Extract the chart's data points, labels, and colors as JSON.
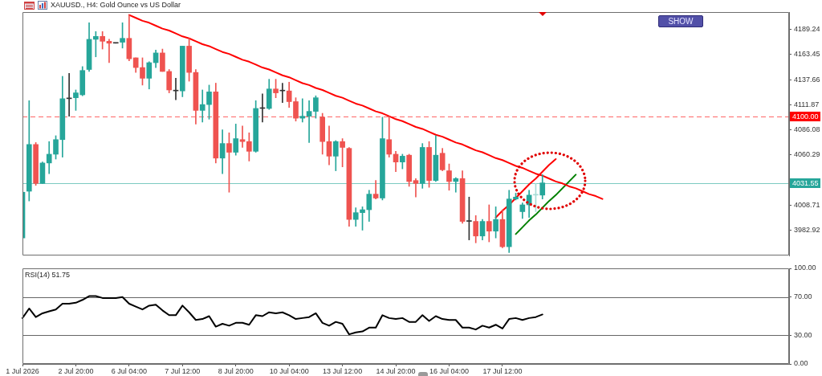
{
  "chart_data": [
    {
      "type": "candlestick",
      "title": "XAUUSD., H4: Gold Ounce vs US Dollar",
      "categories": [
        null,
        null,
        null,
        null,
        null,
        null,
        null,
        null,
        null,
        null,
        null,
        null,
        null,
        null,
        null,
        null,
        null,
        null,
        null,
        null,
        null,
        null,
        null,
        null,
        null,
        null,
        null,
        null,
        null,
        null,
        null,
        null,
        null,
        null,
        null,
        null,
        null,
        null,
        null,
        null,
        null,
        null,
        null,
        null,
        null,
        null,
        null,
        null,
        null,
        null,
        null,
        null,
        null,
        null,
        null,
        null,
        null,
        null,
        null,
        null,
        null,
        null,
        null,
        null,
        null,
        null,
        null,
        null,
        null,
        null,
        null,
        null,
        null,
        null,
        null,
        null,
        null,
        null,
        null,
        null,
        null,
        null,
        null,
        null,
        null,
        null,
        null,
        null,
        null,
        null,
        null,
        null,
        null,
        null,
        null,
        null,
        null,
        null,
        null,
        null,
        null,
        null,
        null,
        null,
        null,
        null,
        null,
        null,
        null,
        null,
        null,
        null,
        null,
        null,
        null,
        null
      ],
      "ohlc": [
        [
          3975,
          4022,
          3975,
          4022
        ],
        [
          4023,
          4116,
          4013,
          4071
        ],
        [
          4071,
          4073,
          4029,
          4031
        ],
        [
          4031,
          4053,
          4031,
          4052
        ],
        [
          4052,
          4074,
          4041,
          4061
        ],
        [
          4061,
          4080,
          4056,
          4076
        ],
        [
          4076,
          4141,
          4058,
          4118
        ],
        [
          4118,
          4144,
          4100,
          4118
        ],
        [
          4119,
          4127,
          4106,
          4124
        ],
        [
          4122,
          4151,
          4121,
          4147
        ],
        [
          4148,
          4196,
          4146,
          4179
        ],
        [
          4179,
          4187,
          4161,
          4182
        ],
        [
          4182,
          4187,
          4169,
          4177
        ],
        [
          4177,
          4179,
          4155,
          4175
        ],
        [
          4175,
          4175,
          4175,
          4175
        ],
        [
          4176,
          4196,
          4170,
          4180
        ],
        [
          4180,
          4204,
          4157,
          4159
        ],
        [
          4160,
          4160,
          4145,
          4150
        ],
        [
          4150,
          4160,
          4132,
          4139
        ],
        [
          4139,
          4156,
          4128,
          4155
        ],
        [
          4155,
          4168,
          4150,
          4165
        ],
        [
          4165,
          4169,
          4146,
          4146
        ],
        [
          4146,
          4148,
          4124,
          4127
        ],
        [
          4126,
          4139,
          4117,
          4126
        ],
        [
          4126,
          4172,
          4120,
          4172
        ],
        [
          4172,
          4180,
          4136,
          4145
        ],
        [
          4145,
          4148,
          4092,
          4106
        ],
        [
          4106,
          4127,
          4094,
          4112
        ],
        [
          4112,
          4132,
          4097,
          4125
        ],
        [
          4125,
          4134,
          4052,
          4057
        ],
        [
          4057,
          4086,
          4041,
          4072
        ],
        [
          4072,
          4083,
          4022,
          4063
        ],
        [
          4063,
          4092,
          4060,
          4077
        ],
        [
          4076,
          4090,
          4068,
          4074
        ],
        [
          4074,
          4083,
          4054,
          4064
        ],
        [
          4064,
          4116,
          4063,
          4108
        ],
        [
          4108,
          4123,
          4094,
          4108
        ],
        [
          4108,
          4138,
          4107,
          4128
        ],
        [
          4128,
          4138,
          4119,
          4124
        ],
        [
          4126,
          4134,
          4114,
          4126
        ],
        [
          4126,
          4135,
          4109,
          4115
        ],
        [
          4115,
          4119,
          4095,
          4098
        ],
        [
          4098,
          4118,
          4094,
          4100
        ],
        [
          4100,
          4116,
          4073,
          4105
        ],
        [
          4105,
          4121,
          4098,
          4119
        ],
        [
          4099,
          4103,
          4061,
          4074
        ],
        [
          4074,
          4090,
          4050,
          4059
        ],
        [
          4059,
          4075,
          4044,
          4074
        ],
        [
          4074,
          4077,
          4048,
          4068
        ],
        [
          4067,
          4068,
          3987,
          3994
        ],
        [
          3994,
          4006,
          3987,
          4001
        ],
        [
          4001,
          4007,
          3983,
          4004
        ],
        [
          4004,
          4024,
          3992,
          4020
        ],
        [
          4020,
          4034,
          4015,
          4016
        ],
        [
          4016,
          4099,
          4014,
          4077
        ],
        [
          4076,
          4100,
          4058,
          4061
        ],
        [
          4061,
          4064,
          4043,
          4053
        ],
        [
          4053,
          4061,
          4046,
          4059
        ],
        [
          4060,
          4061,
          4028,
          4033
        ],
        [
          4034,
          4036,
          4017,
          4031
        ],
        [
          4031,
          4072,
          4026,
          4068
        ],
        [
          4068,
          4074,
          4027,
          4034
        ],
        [
          4034,
          4080,
          4033,
          4060
        ],
        [
          4062,
          4067,
          4044,
          4045
        ],
        [
          4044,
          4051,
          4024,
          4033
        ],
        [
          4033,
          4037,
          4022,
          4036
        ],
        [
          4036,
          4044,
          3990,
          3992
        ],
        [
          3992,
          4017,
          3973,
          3992
        ],
        [
          3992,
          3998,
          3970,
          3977
        ],
        [
          3977,
          3994,
          3973,
          3992
        ],
        [
          3992,
          4009,
          3971,
          3982
        ],
        [
          3982,
          4007,
          3975,
          3994
        ],
        [
          3994,
          4004,
          3965,
          3966
        ],
        [
          3966,
          4024,
          3960,
          4015
        ],
        [
          4015,
          4021,
          4014,
          4017
        ],
        [
          4002,
          4011,
          3995,
          4009
        ],
        [
          4009,
          4024,
          3996,
          4019
        ],
        [
          4019,
          4031,
          4002,
          4019
        ],
        [
          4019,
          4040,
          4015,
          4031.55
        ],
        null,
        null,
        null,
        null,
        null,
        null,
        null,
        null,
        null,
        null,
        null,
        null,
        null,
        null,
        null,
        null,
        null,
        null,
        null,
        null,
        null,
        null,
        null,
        null,
        null,
        null,
        null,
        null,
        null,
        null,
        null,
        null,
        null,
        null,
        null,
        null,
        null
      ],
      "colors": [
        "#26a69a",
        "#26a69a",
        "#ef5350",
        "#26a69a",
        "#26a69a",
        "#26a69a",
        "#26a69a",
        "#333333",
        "#26a69a",
        "#26a69a",
        "#26a69a",
        "#26a69a",
        "#ef5350",
        "#ef5350",
        "#333333",
        "#26a69a",
        "#ef5350",
        "#ef5350",
        "#ef5350",
        "#26a69a",
        "#26a69a",
        "#ef5350",
        "#ef5350",
        "#333333",
        "#26a69a",
        "#ef5350",
        "#ef5350",
        "#26a69a",
        "#26a69a",
        "#ef5350",
        "#26a69a",
        "#ef5350",
        "#26a69a",
        "#ef5350",
        "#ef5350",
        "#26a69a",
        "#333333",
        "#26a69a",
        "#ef5350",
        "#333333",
        "#ef5350",
        "#ef5350",
        "#26a69a",
        "#26a69a",
        "#26a69a",
        "#ef5350",
        "#ef5350",
        "#26a69a",
        "#ef5350",
        "#ef5350",
        "#26a69a",
        "#26a69a",
        "#26a69a",
        "#ef5350",
        "#26a69a",
        "#ef5350",
        "#ef5350",
        "#26a69a",
        "#ef5350",
        "#ef5350",
        "#26a69a",
        "#ef5350",
        "#26a69a",
        "#ef5350",
        "#ef5350",
        "#26a69a",
        "#ef5350",
        "#333333",
        "#ef5350",
        "#26a69a",
        "#ef5350",
        "#26a69a",
        "#ef5350",
        "#26a69a",
        "#26a69a",
        "#26a69a",
        "#26a69a",
        "#a6dcd6",
        "#26a69a",
        null,
        null,
        null,
        null,
        null,
        null,
        null,
        null,
        null,
        null,
        null,
        null,
        null,
        null,
        null,
        null,
        null,
        null,
        null,
        null,
        null,
        null,
        null,
        null,
        null,
        null,
        null,
        null,
        null,
        null,
        null,
        null,
        null,
        null,
        null,
        null,
        null
      ],
      "series": [
        {
          "type": "line",
          "color": "#ff0000",
          "values": [
            null,
            null,
            null,
            null,
            null,
            null,
            null,
            null,
            null,
            null,
            null,
            null,
            null,
            null,
            null,
            null,
            4204,
            4201,
            4198,
            4196,
            4193,
            4190,
            4188,
            4185,
            4182,
            4180,
            4177,
            4174,
            4172,
            4169,
            4166,
            4164,
            4161,
            4158,
            4156,
            4153,
            4150,
            4148,
            4145,
            4142,
            4140,
            4137,
            4134,
            4132,
            4129,
            4127,
            4124,
            4121,
            4119,
            4116,
            4113,
            4111,
            4108,
            4105,
            4103,
            4100,
            4097,
            4095,
            4092,
            4089,
            4087,
            4084,
            4081,
            4079,
            4076,
            4073,
            4071,
            4068,
            4065,
            4063,
            4060,
            4057,
            4055,
            4052,
            4049,
            4047,
            4044,
            4041,
            4039,
            4036,
            4033,
            4031,
            4028,
            4026,
            4023,
            4020,
            4018,
            4015,
            null,
            null,
            null,
            null,
            null,
            null,
            null,
            null,
            null,
            null,
            null,
            null,
            null,
            null,
            null,
            null,
            null,
            null,
            null,
            null,
            null,
            null,
            null,
            null,
            null,
            null,
            null,
            null
          ]
        },
        {
          "type": "line",
          "color": "#ff0000",
          "values": [
            null,
            null,
            null,
            null,
            null,
            null,
            null,
            null,
            null,
            null,
            null,
            null,
            null,
            null,
            null,
            null,
            null,
            null,
            null,
            null,
            null,
            null,
            null,
            null,
            null,
            null,
            null,
            null,
            null,
            null,
            null,
            null,
            null,
            null,
            null,
            null,
            null,
            null,
            null,
            null,
            null,
            null,
            null,
            null,
            null,
            null,
            null,
            null,
            null,
            null,
            null,
            null,
            null,
            null,
            null,
            null,
            null,
            null,
            null,
            null,
            null,
            null,
            null,
            null,
            null,
            null,
            null,
            null,
            null,
            null,
            null,
            3996,
            4003,
            4009,
            4016,
            4023,
            4030,
            4036,
            4043,
            4050,
            4056,
            null,
            null,
            null,
            null,
            null,
            null,
            null,
            null,
            null,
            null,
            null,
            null,
            null,
            null,
            null,
            null,
            null,
            null,
            null,
            null,
            null,
            null,
            null,
            null,
            null,
            null,
            null,
            null,
            null,
            null,
            null,
            null,
            null,
            null,
            null
          ]
        },
        {
          "type": "line",
          "color": "#008000",
          "values": [
            null,
            null,
            null,
            null,
            null,
            null,
            null,
            null,
            null,
            null,
            null,
            null,
            null,
            null,
            null,
            null,
            null,
            null,
            null,
            null,
            null,
            null,
            null,
            null,
            null,
            null,
            null,
            null,
            null,
            null,
            null,
            null,
            null,
            null,
            null,
            null,
            null,
            null,
            null,
            null,
            null,
            null,
            null,
            null,
            null,
            null,
            null,
            null,
            null,
            null,
            null,
            null,
            null,
            null,
            null,
            null,
            null,
            null,
            null,
            null,
            null,
            null,
            null,
            null,
            null,
            null,
            null,
            null,
            null,
            null,
            null,
            null,
            null,
            null,
            3979,
            3986,
            3993,
            3999,
            4006,
            4013,
            4019,
            4026,
            4033,
            4040,
            null,
            null,
            null,
            null,
            null,
            null,
            null,
            null,
            null,
            null,
            null,
            null,
            null,
            null,
            null,
            null,
            null,
            null,
            null,
            null,
            null,
            null,
            null,
            null,
            null,
            null,
            null,
            null,
            null,
            null,
            null,
            null
          ]
        }
      ],
      "ylim": [
        3957,
        4207
      ],
      "yticks": [
        4189.24,
        4163.45,
        4137.66,
        4111.87,
        4086.08,
        4060.29,
        {
          "value": 4034.5,
          "label": null
        },
        4008.71,
        3982.92
      ],
      "ref_lines": [
        {
          "axis": "y",
          "value": 4100,
          "label": "4100.00",
          "color": "#ff0000",
          "line_style": "dashed"
        },
        {
          "axis": "y",
          "value": 4031.55,
          "label": "4031.55",
          "color": "#26a69a"
        }
      ],
      "tick_labels": "y",
      "annotations": [
        "SHOW"
      ]
    },
    {
      "type": "line",
      "title": "RSI(14) 51.75",
      "categories": [
        "1 Jul 2026",
        null,
        null,
        null,
        null,
        null,
        null,
        null,
        "2 Jul 20:00",
        null,
        null,
        null,
        null,
        null,
        null,
        null,
        "6 Jul 04:00",
        null,
        null,
        null,
        null,
        null,
        null,
        null,
        "7 Jul 12:00",
        null,
        null,
        null,
        null,
        null,
        null,
        null,
        "8 Jul 20:00",
        null,
        null,
        null,
        null,
        null,
        null,
        null,
        "10 Jul 04:00",
        null,
        null,
        null,
        null,
        null,
        null,
        null,
        "13 Jul 12:00",
        null,
        null,
        null,
        null,
        null,
        null,
        null,
        "14 Jul 20:00",
        null,
        null,
        null,
        null,
        null,
        null,
        null,
        "16 Jul 04:00",
        null,
        null,
        null,
        null,
        null,
        null,
        null,
        "17 Jul 12:00",
        null,
        null,
        null,
        null,
        null,
        null,
        null,
        null,
        null,
        null,
        null,
        null,
        null,
        null,
        null,
        null,
        null,
        null,
        null,
        null,
        null,
        null,
        null,
        null,
        null,
        null,
        null,
        null,
        null,
        null,
        null,
        null,
        null,
        null,
        null,
        null,
        null,
        null,
        null,
        null,
        null,
        null,
        null
      ],
      "series": [
        {
          "color": "#000000",
          "values": [
            48,
            58,
            49,
            53,
            55,
            57,
            63,
            63,
            64,
            67,
            71,
            71,
            69,
            69,
            69,
            70,
            63,
            60,
            57,
            61,
            62,
            56,
            51,
            51,
            61,
            54,
            46,
            47,
            50,
            39,
            42,
            40,
            43,
            43,
            41,
            51,
            50,
            54,
            53,
            54,
            51,
            47,
            48,
            49,
            53,
            43,
            40,
            44,
            42,
            31,
            33,
            34,
            38,
            38,
            51,
            48,
            47,
            48,
            44,
            44,
            51,
            45,
            50,
            47,
            46,
            46,
            38,
            38,
            36,
            40,
            38,
            41,
            37,
            47,
            48,
            46,
            48,
            49,
            51.75,
            null,
            null,
            null,
            null,
            null,
            null,
            null,
            null,
            null,
            null,
            null,
            null,
            null,
            null,
            null,
            null,
            null,
            null,
            null,
            null,
            null,
            null,
            null,
            null,
            null,
            null,
            null,
            null,
            null,
            null,
            null,
            null,
            null,
            null,
            null,
            null,
            null
          ]
        }
      ],
      "ylim": [
        0,
        100
      ],
      "yticks": [
        {
          "value": 100,
          "label": "100.00"
        },
        {
          "value": 70,
          "label": "70.00"
        },
        {
          "value": 30,
          "label": "30.00"
        },
        {
          "value": 0,
          "label": "0.00"
        }
      ],
      "ref_lines": [
        {
          "axis": "y",
          "value": 70,
          "color": "#000000"
        },
        {
          "axis": "y",
          "value": 30,
          "color": "#000000"
        }
      ]
    }
  ]
}
